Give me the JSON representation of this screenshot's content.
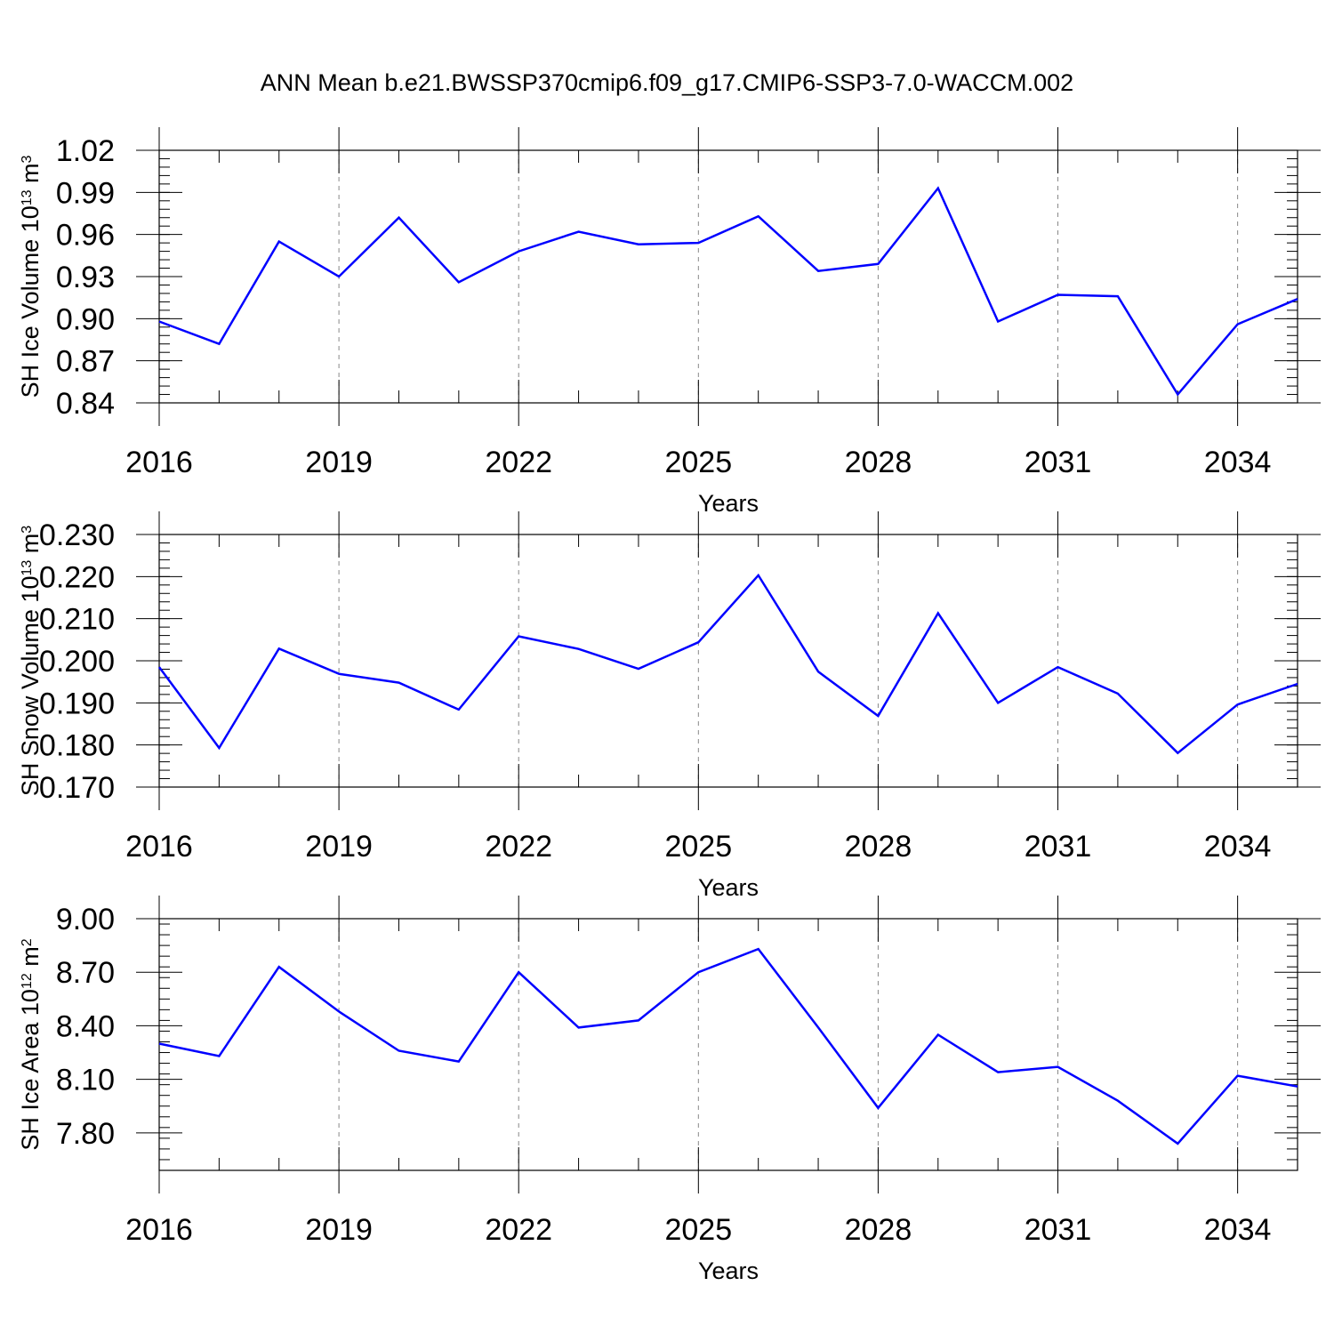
{
  "title": "ANN Mean b.e21.BWSSP370cmip6.f09_g17.CMIP6-SSP3-7.0-WACCM.002",
  "colors": {
    "line": "#0000ff",
    "axis": "#000000",
    "grid": "#888888"
  },
  "chart_data": [
    {
      "type": "line",
      "ylabel": {
        "text": "SH Ice Volume 10",
        "sup1": "13",
        "mid": " m",
        "sup2": "3"
      },
      "xlabel": "Years",
      "xlim": [
        2016,
        2035
      ],
      "ylim": [
        0.84,
        1.02
      ],
      "x_ticks": [
        2016,
        2019,
        2022,
        2025,
        2028,
        2031,
        2034
      ],
      "y_ticks": [
        0.84,
        0.87,
        0.9,
        0.93,
        0.96,
        0.99,
        1.02
      ],
      "y_tick_labels": [
        "0.84",
        "0.87",
        "0.90",
        "0.93",
        "0.96",
        "0.99",
        "1.02"
      ],
      "y_minor_step": 0.006,
      "grid": "vertical dashed at major x ticks",
      "x": [
        2016,
        2017,
        2018,
        2019,
        2020,
        2021,
        2022,
        2023,
        2024,
        2025,
        2026,
        2027,
        2028,
        2029,
        2030,
        2031,
        2032,
        2033,
        2034,
        2035
      ],
      "values": [
        0.898,
        0.882,
        0.955,
        0.93,
        0.972,
        0.926,
        0.948,
        0.962,
        0.953,
        0.954,
        0.973,
        0.934,
        0.939,
        0.993,
        0.898,
        0.917,
        0.916,
        0.846,
        0.896,
        0.914
      ]
    },
    {
      "type": "line",
      "ylabel": {
        "text": "SH Snow Volume 10",
        "sup1": "13",
        "mid": " m",
        "sup2": "3"
      },
      "xlabel": "Years",
      "xlim": [
        2016,
        2035
      ],
      "ylim": [
        0.17,
        0.23
      ],
      "x_ticks": [
        2016,
        2019,
        2022,
        2025,
        2028,
        2031,
        2034
      ],
      "y_ticks": [
        0.17,
        0.18,
        0.19,
        0.2,
        0.21,
        0.22,
        0.23
      ],
      "y_tick_labels": [
        "0.170",
        "0.180",
        "0.190",
        "0.200",
        "0.210",
        "0.220",
        "0.230"
      ],
      "y_minor_step": 0.002,
      "grid": "vertical dashed at major x ticks",
      "x": [
        2016,
        2017,
        2018,
        2019,
        2020,
        2021,
        2022,
        2023,
        2024,
        2025,
        2026,
        2027,
        2028,
        2029,
        2030,
        2031,
        2032,
        2033,
        2034,
        2035
      ],
      "values": [
        0.1985,
        0.1793,
        0.2029,
        0.1969,
        0.1948,
        0.1884,
        0.2058,
        0.2028,
        0.1981,
        0.2044,
        0.2203,
        0.1974,
        0.1869,
        0.2113,
        0.19,
        0.1985,
        0.1922,
        0.1781,
        0.1896,
        0.1945
      ]
    },
    {
      "type": "line",
      "ylabel": {
        "text": "SH Ice Area 10",
        "sup1": "12",
        "mid": " m",
        "sup2": "2"
      },
      "xlabel": "Years",
      "xlim": [
        2016,
        2035
      ],
      "ylim": [
        7.59,
        9.0
      ],
      "x_ticks": [
        2016,
        2019,
        2022,
        2025,
        2028,
        2031,
        2034
      ],
      "y_ticks": [
        7.8,
        8.1,
        8.4,
        8.7,
        9.0
      ],
      "y_tick_labels": [
        "7.80",
        "8.10",
        "8.40",
        "8.70",
        "9.00"
      ],
      "y_minor_step": 0.06,
      "grid": "vertical dashed at major x ticks",
      "x": [
        2016,
        2017,
        2018,
        2019,
        2020,
        2021,
        2022,
        2023,
        2024,
        2025,
        2026,
        2027,
        2028,
        2029,
        2030,
        2031,
        2032,
        2033,
        2034,
        2035
      ],
      "values": [
        8.3,
        8.23,
        8.73,
        8.48,
        8.26,
        8.2,
        8.7,
        8.39,
        8.43,
        8.7,
        8.83,
        8.39,
        7.94,
        8.35,
        8.14,
        8.17,
        7.98,
        7.74,
        8.12,
        8.06
      ]
    }
  ]
}
